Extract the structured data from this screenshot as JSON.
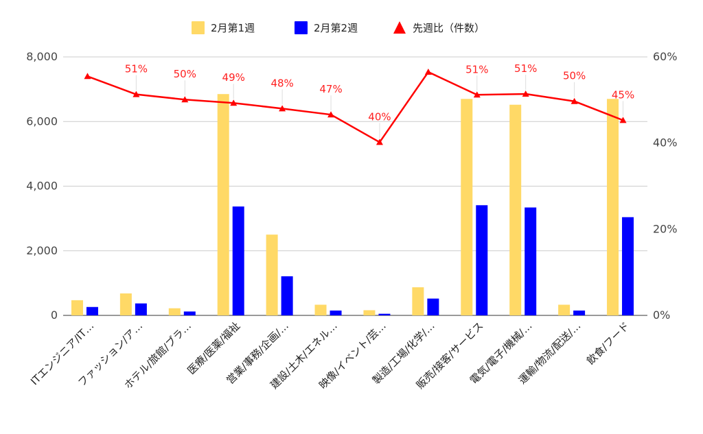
{
  "chart_data": {
    "type": "bar",
    "categories": [
      "ITエンジニア/IT…",
      "ファッション/ア…",
      "ホテル/旅館/ブラ…",
      "医療/医薬/福祉",
      "営業/事務/企画/…",
      "建設/土木/エネル…",
      "映像/イベント/芸…",
      "製造/工場/化学/…",
      "販売/接客/サービス",
      "電気/電子/機械/…",
      "運輸/物流/配送/…",
      "飲食/フード"
    ],
    "series": [
      {
        "name": "2月第1週",
        "type": "bar",
        "color": "#FFD966",
        "values": [
          470,
          680,
          220,
          6850,
          2500,
          330,
          160,
          870,
          6700,
          6520,
          330,
          6700
        ]
      },
      {
        "name": "2月第2週",
        "type": "bar",
        "color": "#0000FF",
        "values": [
          260,
          370,
          120,
          3370,
          1210,
          150,
          50,
          520,
          3410,
          3340,
          150,
          3040
        ]
      },
      {
        "name": "先週比（件数）",
        "type": "line",
        "axis": "right",
        "color": "#FF0000",
        "marker": "triangle",
        "values": [
          55.5,
          51.3,
          50.1,
          49.3,
          48.0,
          46.6,
          40.2,
          56.5,
          51.2,
          51.4,
          49.7,
          45.3
        ]
      }
    ],
    "data_labels": [
      "",
      "51%",
      "50%",
      "49%",
      "48%",
      "47%",
      "40%",
      "",
      "51%",
      "51%",
      "50%",
      "45%"
    ],
    "y_left": {
      "min": 0,
      "max": 8000,
      "ticks": [
        0,
        2000,
        4000,
        6000,
        8000
      ],
      "tick_labels": [
        "0",
        "2,000",
        "4,000",
        "6,000",
        "8,000"
      ]
    },
    "y_right": {
      "min": 0,
      "max": 60,
      "ticks": [
        0,
        20,
        40,
        60
      ],
      "tick_labels": [
        "0%",
        "20%",
        "40%",
        "60%"
      ]
    },
    "grid": true,
    "legend_position": "top-center"
  }
}
